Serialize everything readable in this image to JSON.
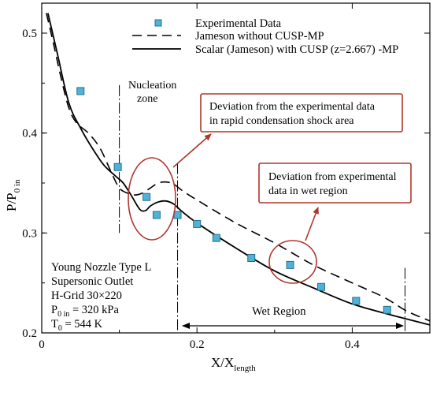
{
  "chart_data": {
    "type": "line",
    "xlabel": "X/X",
    "xlabel_sub": "length",
    "ylabel": "P/P",
    "ylabel_sub": "0 in",
    "xlim": [
      0,
      0.5
    ],
    "ylim": [
      0.2,
      0.53
    ],
    "x_ticks": [
      0,
      0.2,
      0.4
    ],
    "x_tick_labels": [
      "0",
      "0.2",
      "0.4"
    ],
    "y_ticks": [
      0.2,
      0.3,
      0.4,
      0.5
    ],
    "y_tick_labels": [
      "0.2",
      "0.3",
      "0.4",
      "0.5"
    ],
    "legend": {
      "placement": "top-right",
      "entries": [
        "Experimental Data",
        "Jameson without CUSP-MP",
        "Scalar (Jameson) with CUSP (z=2.667) -MP"
      ]
    },
    "series": [
      {
        "name": "Experimental Data",
        "kind": "markers",
        "color": "#4fb3d9",
        "x": [
          0.05,
          0.098,
          0.135,
          0.148,
          0.175,
          0.2,
          0.225,
          0.27,
          0.32,
          0.36,
          0.405,
          0.445
        ],
        "y": [
          0.442,
          0.366,
          0.336,
          0.318,
          0.318,
          0.309,
          0.295,
          0.275,
          0.268,
          0.246,
          0.232,
          0.223
        ]
      },
      {
        "name": "Jameson without CUSP-MP",
        "kind": "dashed-line",
        "color": "#000000",
        "x": [
          0.006,
          0.015,
          0.025,
          0.035,
          0.045,
          0.06,
          0.075,
          0.09,
          0.1,
          0.11,
          0.12,
          0.13,
          0.14,
          0.15,
          0.16,
          0.17,
          0.18,
          0.2,
          0.25,
          0.3,
          0.35,
          0.4,
          0.44,
          0.47,
          0.5
        ],
        "y": [
          0.52,
          0.49,
          0.455,
          0.425,
          0.41,
          0.4,
          0.385,
          0.36,
          0.345,
          0.34,
          0.338,
          0.34,
          0.345,
          0.35,
          0.351,
          0.349,
          0.343,
          0.333,
          0.31,
          0.29,
          0.268,
          0.25,
          0.236,
          0.222,
          0.212
        ]
      },
      {
        "name": "Scalar (Jameson) with CUSP (z=2.667) -MP",
        "kind": "solid-line",
        "color": "#000000",
        "x": [
          0.008,
          0.02,
          0.035,
          0.05,
          0.065,
          0.08,
          0.095,
          0.105,
          0.115,
          0.125,
          0.13,
          0.135,
          0.14,
          0.15,
          0.16,
          0.17,
          0.18,
          0.2,
          0.25,
          0.3,
          0.35,
          0.4,
          0.45,
          0.5
        ],
        "y": [
          0.52,
          0.48,
          0.43,
          0.405,
          0.385,
          0.368,
          0.357,
          0.35,
          0.338,
          0.325,
          0.322,
          0.323,
          0.327,
          0.331,
          0.332,
          0.329,
          0.322,
          0.31,
          0.285,
          0.262,
          0.245,
          0.229,
          0.218,
          0.208
        ]
      }
    ],
    "reference_lines_x": [
      0.1,
      0.175,
      0.468
    ],
    "annotations": {
      "nucleation_line1": "Nucleation",
      "nucleation_line2": "zone",
      "box1_line1": "Deviation from the experimental data",
      "box1_line2": "in rapid condensation shock area",
      "box2_line1": "Deviation from experimental",
      "box2_line2": "data in wet region",
      "wet_region": "Wet Region",
      "info_line1": "Young Nozzle Type L",
      "info_line2": "Supersonic Outlet",
      "info_line3": "H-Grid 30×220",
      "info_p_main": "P",
      "info_p_sub": "0 in",
      "info_p_value": " = 320 kPa",
      "info_t_main": "T",
      "info_t_sub": "0",
      "info_t_value": " = 544 K"
    },
    "highlight_color": "#b0362d"
  }
}
